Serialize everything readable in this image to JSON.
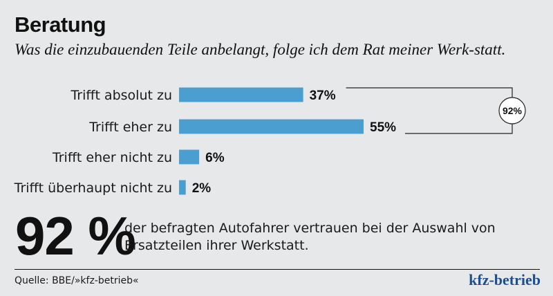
{
  "header": {
    "title": "Beratung",
    "subtitle": "Was die einzubauenden Teile anbelangt, folge ich dem Rat meiner Werk-statt."
  },
  "chart_data": {
    "type": "bar",
    "orientation": "horizontal",
    "categories": [
      "Trifft absolut zu",
      "Trifft eher zu",
      "Trifft eher nicht zu",
      "Trifft überhaupt nicht zu"
    ],
    "values": [
      37,
      55,
      6,
      2
    ],
    "value_labels": [
      "37%",
      "55%",
      "6%",
      "2%"
    ],
    "unit": "%",
    "bar_color": "#4a9fd0",
    "xlim": [
      0,
      55
    ],
    "grid": false,
    "bracket": {
      "covers": [
        "Trifft absolut zu",
        "Trifft eher zu"
      ],
      "label": "92%",
      "value": 92
    }
  },
  "highlight": {
    "number": "92 %",
    "text": "der befragten Autofahrer vertrauen bei der Auswahl von Ersatzteilen ihrer Werkstatt."
  },
  "footer": {
    "source": "Quelle: BBE/»kfz-betrieb«",
    "logo": "kfz-betrieb"
  }
}
